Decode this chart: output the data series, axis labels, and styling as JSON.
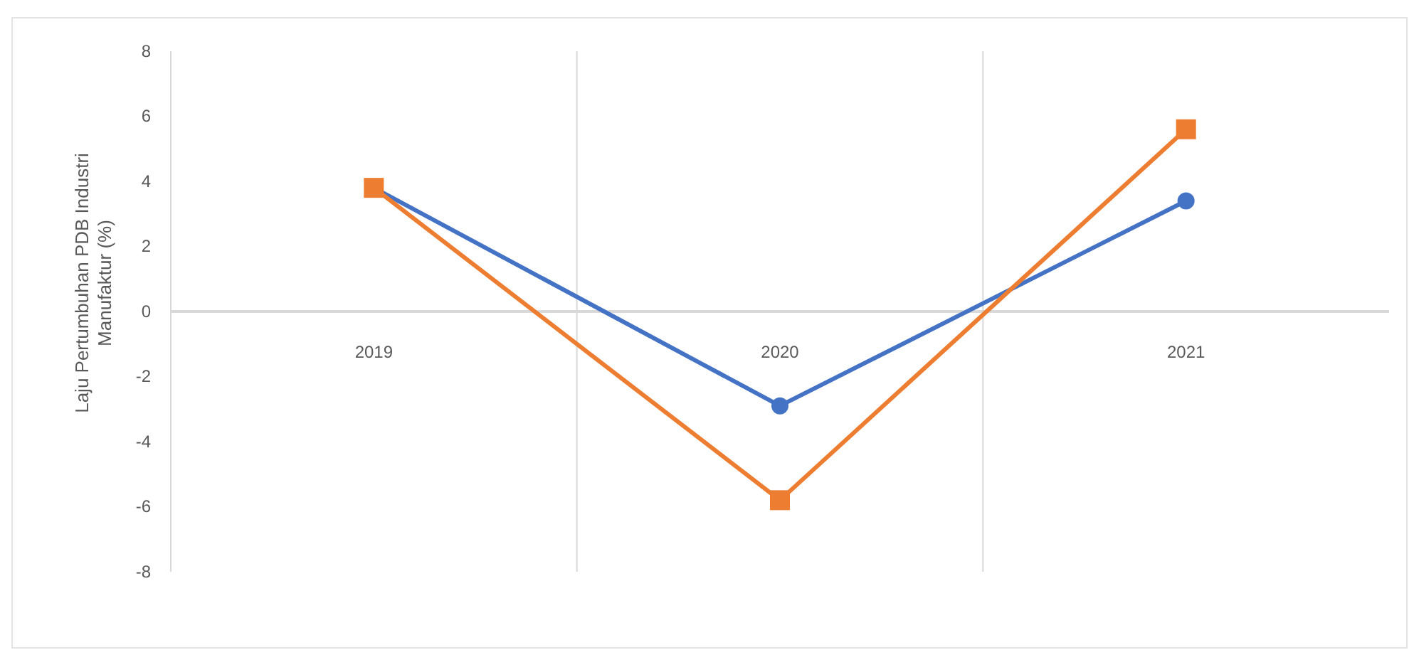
{
  "chart_data": {
    "type": "line",
    "ylabel": "Laju Pertumbuhan PDB Industri Manufaktur (%)",
    "categories": [
      "2019",
      "2020",
      "2021"
    ],
    "series": [
      {
        "color": "#4472c4",
        "marker": "circle",
        "values": [
          3.8,
          -2.9,
          3.4
        ]
      },
      {
        "color": "#ed7d31",
        "marker": "square",
        "values": [
          3.8,
          -5.8,
          5.6
        ]
      }
    ],
    "ylim": [
      -8,
      8
    ],
    "yticks": [
      -8,
      -6,
      -4,
      -2,
      0,
      2,
      4,
      6,
      8
    ],
    "grid": "x"
  }
}
